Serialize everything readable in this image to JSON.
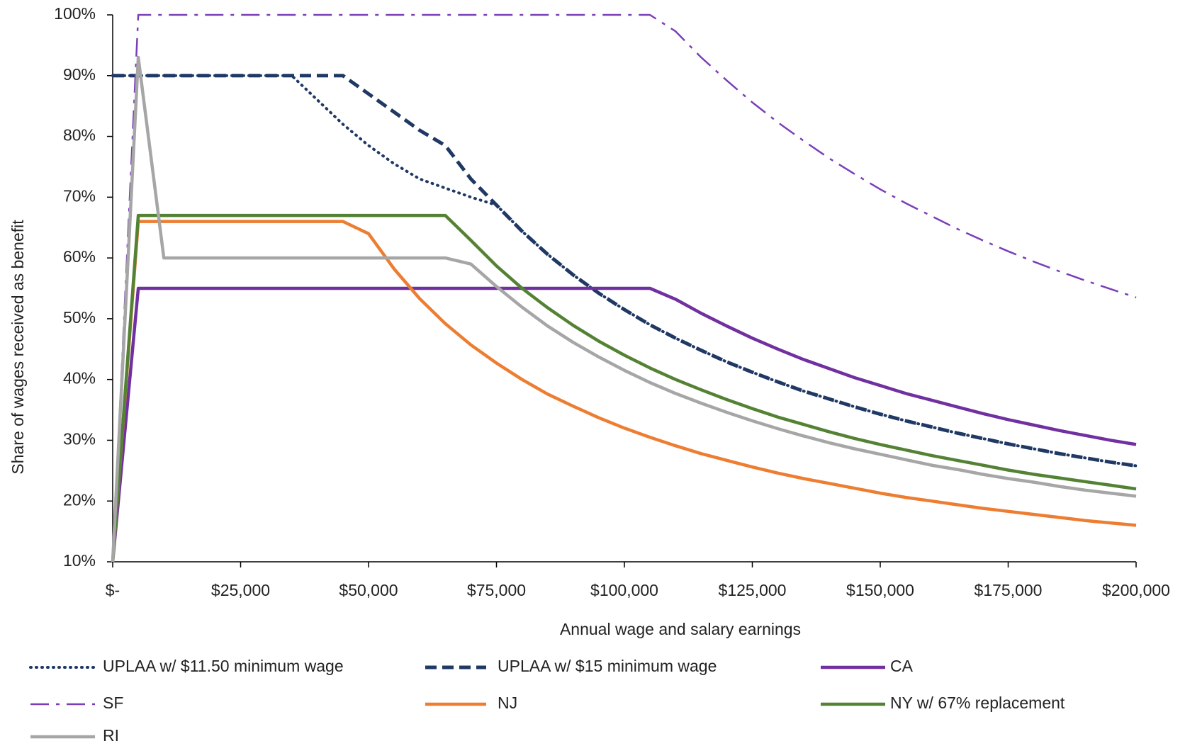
{
  "chart_data": {
    "type": "line",
    "xlabel": "Annual wage and salary earnings",
    "ylabel": "Share of wages received as benefit",
    "x": [
      0,
      5000,
      10000,
      15000,
      20000,
      25000,
      30000,
      35000,
      40000,
      45000,
      50000,
      55000,
      60000,
      65000,
      70000,
      75000,
      80000,
      85000,
      90000,
      95000,
      100000,
      105000,
      110000,
      115000,
      120000,
      125000,
      130000,
      135000,
      140000,
      145000,
      150000,
      155000,
      160000,
      165000,
      170000,
      175000,
      180000,
      185000,
      190000,
      195000,
      200000
    ],
    "xlim": [
      0,
      200000
    ],
    "xticks": [
      {
        "value": 0,
        "label": "$-"
      },
      {
        "value": 25000,
        "label": "$25,000"
      },
      {
        "value": 50000,
        "label": "$50,000"
      },
      {
        "value": 75000,
        "label": "$75,000"
      },
      {
        "value": 100000,
        "label": "$100,000"
      },
      {
        "value": 125000,
        "label": "$125,000"
      },
      {
        "value": 150000,
        "label": "$150,000"
      },
      {
        "value": 175000,
        "label": "$175,000"
      },
      {
        "value": 200000,
        "label": "$200,000"
      }
    ],
    "ylim": [
      10,
      100
    ],
    "yticks": [
      {
        "value": 10,
        "label": "10%"
      },
      {
        "value": 20,
        "label": "20%"
      },
      {
        "value": 30,
        "label": "30%"
      },
      {
        "value": 40,
        "label": "40%"
      },
      {
        "value": 50,
        "label": "50%"
      },
      {
        "value": 60,
        "label": "60%"
      },
      {
        "value": 70,
        "label": "70%"
      },
      {
        "value": 80,
        "label": "80%"
      },
      {
        "value": 90,
        "label": "90%"
      },
      {
        "value": 100,
        "label": "100%"
      }
    ],
    "grid": false,
    "legend": "bottom",
    "series": [
      {
        "name": "UPLAA w/ $11.50 minimum wage",
        "color": "#1f3864",
        "line_style": "dotted",
        "values": [
          90,
          90,
          90,
          90,
          90,
          90,
          90,
          90,
          86,
          82,
          78.5,
          75.5,
          73,
          71.5,
          70,
          68.7,
          64.4,
          60.6,
          57.2,
          54.2,
          51.5,
          49,
          46.8,
          44.8,
          42.9,
          41.2,
          39.6,
          38.1,
          36.8,
          35.5,
          34.3,
          33.2,
          32.2,
          31.2,
          30.3,
          29.4,
          28.6,
          27.8,
          27.1,
          26.4,
          25.8
        ]
      },
      {
        "name": "UPLAA w/ $15 minimum wage",
        "color": "#1f3864",
        "line_style": "dashed",
        "values": [
          90,
          90,
          90,
          90,
          90,
          90,
          90,
          90,
          90,
          90,
          87,
          84,
          81,
          78.5,
          73,
          68.7,
          64.4,
          60.6,
          57.2,
          54.2,
          51.5,
          49,
          46.8,
          44.8,
          42.9,
          41.2,
          39.6,
          38.1,
          36.8,
          35.5,
          34.3,
          33.2,
          32.2,
          31.2,
          30.3,
          29.4,
          28.6,
          27.8,
          27.1,
          26.4,
          25.8
        ]
      },
      {
        "name": "CA",
        "color": "#7030a0",
        "line_style": "solid",
        "values": [
          10,
          55,
          55,
          55,
          55,
          55,
          55,
          55,
          55,
          55,
          55,
          55,
          55,
          55,
          55,
          55,
          55,
          55,
          55,
          55,
          55,
          55,
          53.2,
          50.9,
          48.8,
          46.8,
          45,
          43.3,
          41.8,
          40.3,
          39,
          37.7,
          36.6,
          35.5,
          34.4,
          33.4,
          32.5,
          31.6,
          30.8,
          30,
          29.3
        ]
      },
      {
        "name": "SF",
        "color": "#7a3fb8",
        "line_style": "dashdot",
        "values": [
          10,
          100,
          100,
          100,
          100,
          100,
          100,
          100,
          100,
          100,
          100,
          100,
          100,
          100,
          100,
          100,
          100,
          100,
          100,
          100,
          100,
          100,
          97.3,
          93,
          89.2,
          85.6,
          82.3,
          79.3,
          76.4,
          73.8,
          71.3,
          69,
          66.9,
          64.8,
          62.9,
          61.1,
          59.4,
          57.8,
          56.3,
          54.9,
          53.5
        ]
      },
      {
        "name": "NJ",
        "color": "#ed7d31",
        "line_style": "solid",
        "values": [
          10,
          66,
          66,
          66,
          66,
          66,
          66,
          66,
          66,
          66,
          64,
          58.2,
          53.3,
          49.2,
          45.7,
          42.7,
          40,
          37.6,
          35.6,
          33.7,
          32,
          30.5,
          29.1,
          27.8,
          26.7,
          25.6,
          24.6,
          23.7,
          22.9,
          22.1,
          21.3,
          20.6,
          20,
          19.4,
          18.8,
          18.3,
          17.8,
          17.3,
          16.8,
          16.4,
          16
        ]
      },
      {
        "name": "NY w/ 67% replacement",
        "color": "#548235",
        "line_style": "solid",
        "values": [
          10,
          67,
          67,
          67,
          67,
          67,
          67,
          67,
          67,
          67,
          67,
          67,
          67,
          67,
          62.9,
          58.7,
          55,
          51.8,
          48.9,
          46.3,
          44,
          41.9,
          40,
          38.3,
          36.7,
          35.2,
          33.8,
          32.6,
          31.4,
          30.3,
          29.3,
          28.4,
          27.5,
          26.7,
          25.9,
          25.1,
          24.4,
          23.8,
          23.2,
          22.6,
          22
        ]
      },
      {
        "name": "RI",
        "color": "#a6a6a6",
        "line_style": "solid",
        "values": [
          10,
          93,
          60,
          60,
          60,
          60,
          60,
          60,
          60,
          60,
          60,
          60,
          60,
          60,
          59,
          55.3,
          51.9,
          48.8,
          46.1,
          43.7,
          41.5,
          39.5,
          37.7,
          36.1,
          34.6,
          33.2,
          31.9,
          30.7,
          29.6,
          28.6,
          27.7,
          26.8,
          25.9,
          25.2,
          24.4,
          23.7,
          23.1,
          22.4,
          21.8,
          21.3,
          20.8
        ]
      }
    ]
  }
}
